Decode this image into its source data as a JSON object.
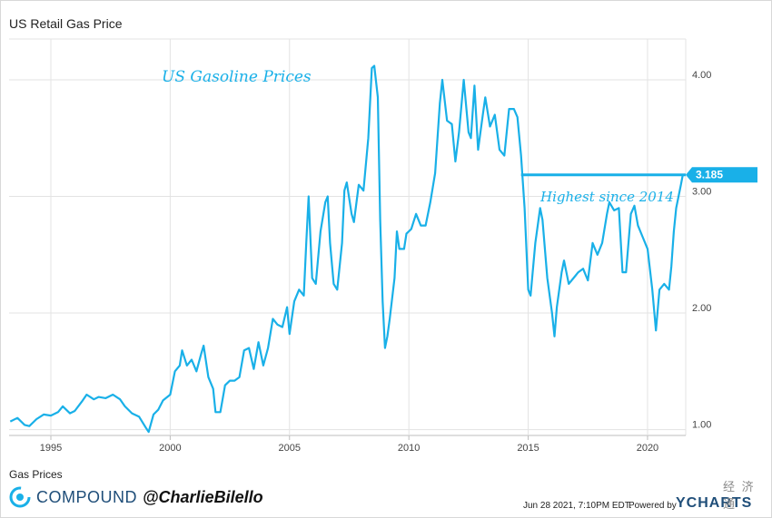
{
  "header": {
    "title": "US Retail Gas Price"
  },
  "legend": {
    "label": "Gas Prices"
  },
  "brand": {
    "name": "COMPOUND",
    "handle": "@CharlieBilello"
  },
  "footer": {
    "date": "Jun 28 2021, 7:10PM EDT.",
    "powered": "Powered by",
    "ycharts": "YCHARTS"
  },
  "watermark": {
    "text": "经 济 通"
  },
  "colors": {
    "line": "#19b0e8",
    "grid": "#e3e3e3",
    "badge": "#19b0e8"
  },
  "chart_data": {
    "type": "line",
    "title": "US Retail Gas Price",
    "annotation_title": "US Gasoline Prices",
    "annotation_high": "Highest since 2014",
    "last_value_label": "3.185",
    "xlim": [
      1993.25,
      2021.6
    ],
    "ylim": [
      0.95,
      4.35
    ],
    "x_ticks": [
      1995,
      2000,
      2005,
      2010,
      2015,
      2020
    ],
    "x_tick_labels": [
      "1995",
      "2000",
      "2005",
      "2010",
      "2015",
      "2020"
    ],
    "y_ticks": [
      1,
      2,
      3,
      4
    ],
    "y_tick_labels": [
      "1.00",
      "2.00",
      "3.00",
      "4.00"
    ],
    "grid": true,
    "high_line_value": 3.185,
    "series": [
      {
        "values": [
          [
            1993.3,
            1.07
          ],
          [
            1993.6,
            1.1
          ],
          [
            1993.9,
            1.04
          ],
          [
            1994.1,
            1.03
          ],
          [
            1994.4,
            1.09
          ],
          [
            1994.7,
            1.13
          ],
          [
            1995.0,
            1.12
          ],
          [
            1995.3,
            1.15
          ],
          [
            1995.5,
            1.2
          ],
          [
            1995.8,
            1.14
          ],
          [
            1996.0,
            1.16
          ],
          [
            1996.3,
            1.24
          ],
          [
            1996.5,
            1.3
          ],
          [
            1996.8,
            1.26
          ],
          [
            1997.0,
            1.28
          ],
          [
            1997.3,
            1.27
          ],
          [
            1997.6,
            1.3
          ],
          [
            1997.9,
            1.26
          ],
          [
            1998.1,
            1.2
          ],
          [
            1998.4,
            1.14
          ],
          [
            1998.7,
            1.11
          ],
          [
            1999.0,
            1.01
          ],
          [
            1999.1,
            0.98
          ],
          [
            1999.3,
            1.13
          ],
          [
            1999.5,
            1.17
          ],
          [
            1999.7,
            1.25
          ],
          [
            2000.0,
            1.3
          ],
          [
            2000.2,
            1.5
          ],
          [
            2000.4,
            1.55
          ],
          [
            2000.5,
            1.68
          ],
          [
            2000.7,
            1.55
          ],
          [
            2000.9,
            1.6
          ],
          [
            2001.1,
            1.5
          ],
          [
            2001.3,
            1.65
          ],
          [
            2001.4,
            1.72
          ],
          [
            2001.6,
            1.45
          ],
          [
            2001.8,
            1.35
          ],
          [
            2001.9,
            1.15
          ],
          [
            2002.1,
            1.15
          ],
          [
            2002.3,
            1.38
          ],
          [
            2002.5,
            1.42
          ],
          [
            2002.7,
            1.42
          ],
          [
            2002.9,
            1.45
          ],
          [
            2003.1,
            1.68
          ],
          [
            2003.3,
            1.7
          ],
          [
            2003.5,
            1.52
          ],
          [
            2003.7,
            1.75
          ],
          [
            2003.9,
            1.55
          ],
          [
            2004.1,
            1.7
          ],
          [
            2004.3,
            1.95
          ],
          [
            2004.5,
            1.9
          ],
          [
            2004.7,
            1.88
          ],
          [
            2004.9,
            2.05
          ],
          [
            2005.0,
            1.82
          ],
          [
            2005.2,
            2.1
          ],
          [
            2005.4,
            2.2
          ],
          [
            2005.6,
            2.15
          ],
          [
            2005.7,
            2.6
          ],
          [
            2005.8,
            3.0
          ],
          [
            2005.95,
            2.3
          ],
          [
            2006.1,
            2.25
          ],
          [
            2006.3,
            2.7
          ],
          [
            2006.5,
            2.95
          ],
          [
            2006.6,
            3.0
          ],
          [
            2006.7,
            2.6
          ],
          [
            2006.85,
            2.25
          ],
          [
            2007.0,
            2.2
          ],
          [
            2007.2,
            2.6
          ],
          [
            2007.3,
            3.05
          ],
          [
            2007.4,
            3.12
          ],
          [
            2007.6,
            2.85
          ],
          [
            2007.7,
            2.78
          ],
          [
            2007.9,
            3.1
          ],
          [
            2008.1,
            3.05
          ],
          [
            2008.3,
            3.5
          ],
          [
            2008.45,
            4.1
          ],
          [
            2008.55,
            4.12
          ],
          [
            2008.7,
            3.85
          ],
          [
            2008.8,
            2.8
          ],
          [
            2008.9,
            2.1
          ],
          [
            2009.0,
            1.7
          ],
          [
            2009.1,
            1.8
          ],
          [
            2009.2,
            1.95
          ],
          [
            2009.4,
            2.3
          ],
          [
            2009.5,
            2.7
          ],
          [
            2009.6,
            2.55
          ],
          [
            2009.8,
            2.55
          ],
          [
            2009.9,
            2.68
          ],
          [
            2010.1,
            2.72
          ],
          [
            2010.3,
            2.85
          ],
          [
            2010.5,
            2.75
          ],
          [
            2010.7,
            2.75
          ],
          [
            2010.9,
            2.95
          ],
          [
            2011.1,
            3.2
          ],
          [
            2011.3,
            3.8
          ],
          [
            2011.4,
            4.0
          ],
          [
            2011.6,
            3.65
          ],
          [
            2011.8,
            3.62
          ],
          [
            2011.95,
            3.3
          ],
          [
            2012.1,
            3.55
          ],
          [
            2012.3,
            4.0
          ],
          [
            2012.5,
            3.55
          ],
          [
            2012.6,
            3.5
          ],
          [
            2012.75,
            3.95
          ],
          [
            2012.9,
            3.4
          ],
          [
            2013.1,
            3.7
          ],
          [
            2013.2,
            3.85
          ],
          [
            2013.4,
            3.6
          ],
          [
            2013.6,
            3.7
          ],
          [
            2013.8,
            3.4
          ],
          [
            2014.0,
            3.35
          ],
          [
            2014.2,
            3.75
          ],
          [
            2014.4,
            3.75
          ],
          [
            2014.55,
            3.68
          ],
          [
            2014.7,
            3.35
          ],
          [
            2014.85,
            2.9
          ],
          [
            2015.0,
            2.2
          ],
          [
            2015.1,
            2.15
          ],
          [
            2015.3,
            2.6
          ],
          [
            2015.5,
            2.9
          ],
          [
            2015.6,
            2.8
          ],
          [
            2015.8,
            2.3
          ],
          [
            2016.0,
            2.0
          ],
          [
            2016.1,
            1.8
          ],
          [
            2016.2,
            2.05
          ],
          [
            2016.4,
            2.35
          ],
          [
            2016.5,
            2.45
          ],
          [
            2016.7,
            2.25
          ],
          [
            2016.9,
            2.3
          ],
          [
            2017.1,
            2.35
          ],
          [
            2017.3,
            2.38
          ],
          [
            2017.5,
            2.28
          ],
          [
            2017.7,
            2.6
          ],
          [
            2017.9,
            2.5
          ],
          [
            2018.1,
            2.6
          ],
          [
            2018.3,
            2.85
          ],
          [
            2018.4,
            2.95
          ],
          [
            2018.6,
            2.88
          ],
          [
            2018.8,
            2.9
          ],
          [
            2018.95,
            2.35
          ],
          [
            2019.1,
            2.35
          ],
          [
            2019.3,
            2.85
          ],
          [
            2019.45,
            2.92
          ],
          [
            2019.6,
            2.75
          ],
          [
            2019.8,
            2.65
          ],
          [
            2020.0,
            2.55
          ],
          [
            2020.2,
            2.2
          ],
          [
            2020.35,
            1.85
          ],
          [
            2020.5,
            2.2
          ],
          [
            2020.7,
            2.25
          ],
          [
            2020.9,
            2.2
          ],
          [
            2021.0,
            2.4
          ],
          [
            2021.1,
            2.7
          ],
          [
            2021.2,
            2.9
          ],
          [
            2021.3,
            3.0
          ],
          [
            2021.4,
            3.1
          ],
          [
            2021.48,
            3.185
          ]
        ]
      }
    ]
  }
}
